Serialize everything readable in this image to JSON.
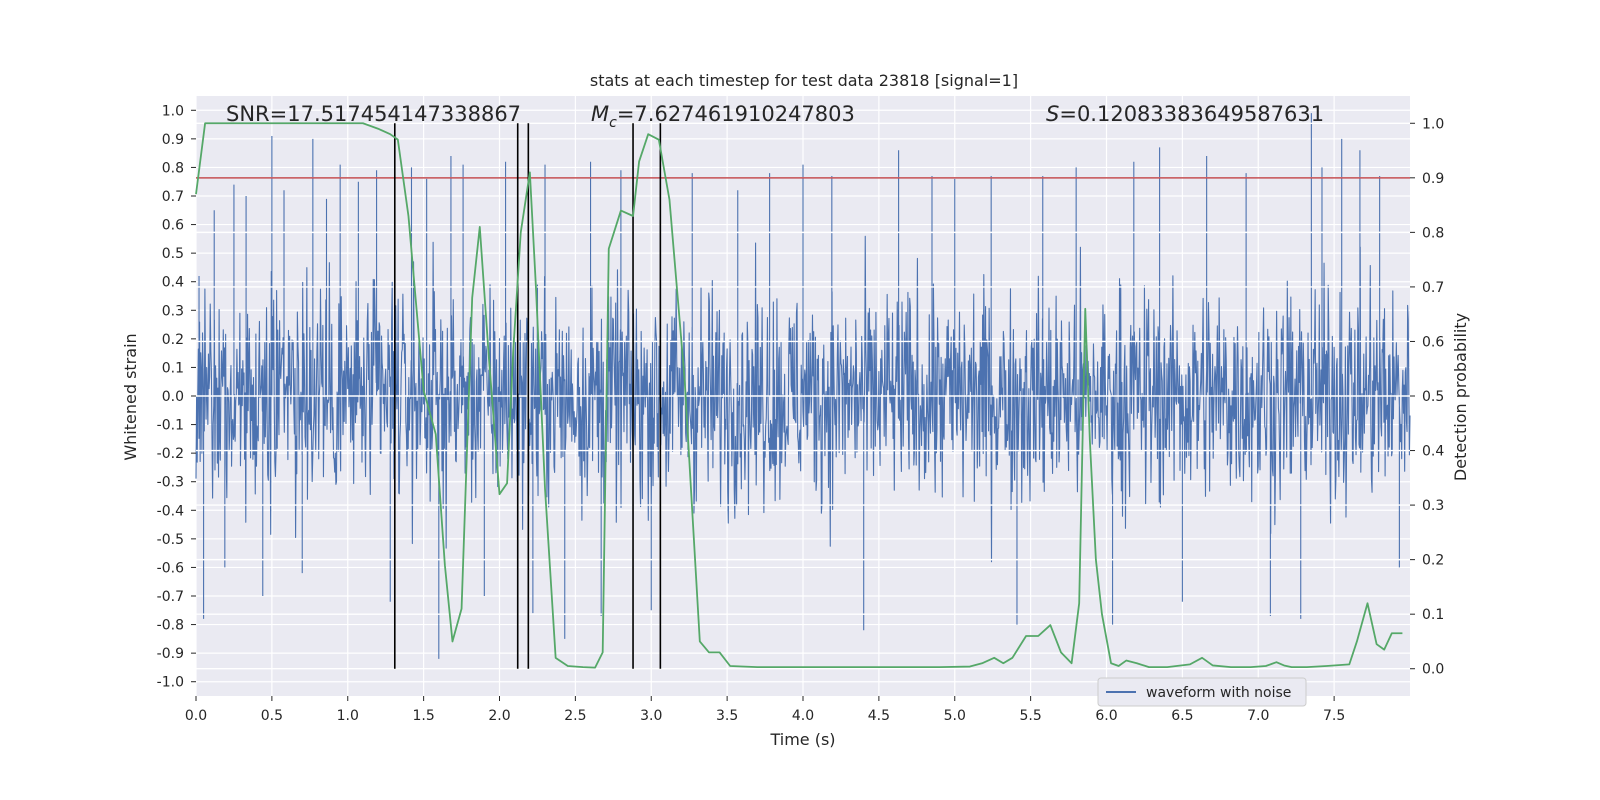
{
  "chart_data": {
    "type": "line",
    "title": "stats at each timestep for test data 23818 [signal=1]",
    "xlabel": "Time (s)",
    "ylabel": "Whitened strain",
    "y2label": "Detection probability",
    "xlim": [
      0.0,
      8.0
    ],
    "ylim": [
      -1.05,
      1.05
    ],
    "y2lim": [
      -0.05,
      1.05
    ],
    "x_ticks": [
      "0.0",
      "0.5",
      "1.0",
      "1.5",
      "2.0",
      "2.5",
      "3.0",
      "3.5",
      "4.0",
      "4.5",
      "5.0",
      "5.5",
      "6.0",
      "6.5",
      "7.0",
      "7.5"
    ],
    "y_ticks": [
      "-1.0",
      "-0.9",
      "-0.8",
      "-0.7",
      "-0.6",
      "-0.5",
      "-0.4",
      "-0.3",
      "-0.2",
      "-0.1",
      "0.0",
      "0.1",
      "0.2",
      "0.3",
      "0.4",
      "0.5",
      "0.6",
      "0.7",
      "0.8",
      "0.9",
      "1.0"
    ],
    "y2_ticks": [
      "0.0",
      "0.1",
      "0.2",
      "0.3",
      "0.4",
      "0.5",
      "0.6",
      "0.7",
      "0.8",
      "0.9",
      "1.0"
    ],
    "grid": true,
    "legend": {
      "placement": "lower-right",
      "entries": [
        "waveform with noise"
      ]
    },
    "annotations": {
      "snr": "SNR=17.517454147338867",
      "mc_symbol": "M",
      "mc_sub": "c",
      "mc_value": "=7.627461910247803",
      "s_symbol": "S",
      "s_value": "=0.12083383649587631"
    },
    "threshold": {
      "axis": "right",
      "value": 0.9,
      "color": "#c44e52"
    },
    "vertical_lines": {
      "x": [
        1.31,
        2.12,
        2.19,
        2.88,
        3.06
      ],
      "y2_range": [
        0.0,
        1.0
      ],
      "color": "#000000"
    },
    "noise_waveform": {
      "name": "waveform with noise",
      "color": "#4c72b0",
      "typical_range": [
        -0.55,
        0.55
      ],
      "peaks": [
        {
          "x": 0.02,
          "y": 0.42
        },
        {
          "x": 0.05,
          "y": -0.78
        },
        {
          "x": 0.12,
          "y": 0.65
        },
        {
          "x": 0.19,
          "y": -0.6
        },
        {
          "x": 0.25,
          "y": 0.74
        },
        {
          "x": 0.33,
          "y": 0.7
        },
        {
          "x": 0.44,
          "y": -0.7
        },
        {
          "x": 0.5,
          "y": 0.91
        },
        {
          "x": 0.58,
          "y": 0.72
        },
        {
          "x": 0.7,
          "y": -0.62
        },
        {
          "x": 0.77,
          "y": 0.9
        },
        {
          "x": 0.86,
          "y": 0.69
        },
        {
          "x": 0.95,
          "y": 0.81
        },
        {
          "x": 1.07,
          "y": 0.75
        },
        {
          "x": 1.19,
          "y": 0.79
        },
        {
          "x": 1.28,
          "y": -0.72
        },
        {
          "x": 1.42,
          "y": 0.8
        },
        {
          "x": 1.52,
          "y": 0.76
        },
        {
          "x": 1.6,
          "y": -0.92
        },
        {
          "x": 1.68,
          "y": 0.84
        },
        {
          "x": 1.76,
          "y": 0.81
        },
        {
          "x": 1.9,
          "y": -0.7
        },
        {
          "x": 2.04,
          "y": 0.82
        },
        {
          "x": 2.22,
          "y": -0.76
        },
        {
          "x": 2.3,
          "y": 0.81
        },
        {
          "x": 2.43,
          "y": -0.85
        },
        {
          "x": 2.6,
          "y": 0.82
        },
        {
          "x": 2.67,
          "y": -0.77
        },
        {
          "x": 2.8,
          "y": 0.79
        },
        {
          "x": 3.0,
          "y": -0.75
        },
        {
          "x": 3.27,
          "y": 0.78
        },
        {
          "x": 3.57,
          "y": 0.72
        },
        {
          "x": 3.78,
          "y": 0.78
        },
        {
          "x": 4.0,
          "y": 0.81
        },
        {
          "x": 4.19,
          "y": 0.77
        },
        {
          "x": 4.4,
          "y": -0.82
        },
        {
          "x": 4.63,
          "y": 0.86
        },
        {
          "x": 4.85,
          "y": 0.77
        },
        {
          "x": 5.0,
          "y": 0.76
        },
        {
          "x": 5.24,
          "y": 0.77
        },
        {
          "x": 5.41,
          "y": -0.8
        },
        {
          "x": 5.58,
          "y": 0.77
        },
        {
          "x": 5.8,
          "y": 0.8
        },
        {
          "x": 6.04,
          "y": -0.8
        },
        {
          "x": 6.18,
          "y": 0.82
        },
        {
          "x": 6.35,
          "y": 0.87
        },
        {
          "x": 6.5,
          "y": -0.72
        },
        {
          "x": 6.66,
          "y": 0.84
        },
        {
          "x": 6.92,
          "y": 0.78
        },
        {
          "x": 7.08,
          "y": -0.77
        },
        {
          "x": 7.28,
          "y": -0.78
        },
        {
          "x": 7.35,
          "y": 0.99
        },
        {
          "x": 7.42,
          "y": 0.8
        },
        {
          "x": 7.55,
          "y": 0.9
        },
        {
          "x": 7.67,
          "y": 0.86
        },
        {
          "x": 7.8,
          "y": 0.77
        },
        {
          "x": 7.93,
          "y": -0.6
        }
      ]
    },
    "detection_probability": {
      "color": "#55a868",
      "axis": "right",
      "x": [
        0.0,
        0.06,
        0.3,
        0.6,
        0.9,
        1.1,
        1.2,
        1.28,
        1.33,
        1.4,
        1.5,
        1.58,
        1.64,
        1.69,
        1.75,
        1.82,
        1.87,
        1.93,
        2.0,
        2.05,
        2.09,
        2.14,
        2.2,
        2.24,
        2.3,
        2.37,
        2.45,
        2.55,
        2.63,
        2.68,
        2.72,
        2.8,
        2.88,
        2.92,
        2.98,
        3.05,
        3.12,
        3.22,
        3.32,
        3.38,
        3.45,
        3.52,
        3.7,
        4.0,
        4.3,
        4.6,
        4.9,
        5.1,
        5.18,
        5.26,
        5.32,
        5.38,
        5.47,
        5.55,
        5.63,
        5.7,
        5.77,
        5.82,
        5.86,
        5.89,
        5.93,
        5.97,
        6.03,
        6.08,
        6.13,
        6.2,
        6.28,
        6.4,
        6.55,
        6.63,
        6.7,
        6.82,
        6.95,
        7.05,
        7.12,
        7.17,
        7.22,
        7.32,
        7.45,
        7.6,
        7.65,
        7.72,
        7.78,
        7.83,
        7.88,
        7.95
      ],
      "y": [
        0.87,
        1.0,
        1.0,
        1.0,
        1.0,
        1.0,
        0.99,
        0.98,
        0.97,
        0.83,
        0.51,
        0.43,
        0.19,
        0.05,
        0.11,
        0.68,
        0.81,
        0.57,
        0.32,
        0.34,
        0.58,
        0.8,
        0.91,
        0.7,
        0.33,
        0.02,
        0.005,
        0.003,
        0.002,
        0.03,
        0.77,
        0.84,
        0.83,
        0.93,
        0.98,
        0.97,
        0.86,
        0.53,
        0.05,
        0.03,
        0.03,
        0.005,
        0.003,
        0.003,
        0.003,
        0.003,
        0.003,
        0.004,
        0.01,
        0.02,
        0.01,
        0.02,
        0.06,
        0.06,
        0.08,
        0.03,
        0.01,
        0.12,
        0.66,
        0.42,
        0.2,
        0.1,
        0.01,
        0.005,
        0.015,
        0.01,
        0.003,
        0.003,
        0.008,
        0.02,
        0.006,
        0.003,
        0.003,
        0.005,
        0.012,
        0.006,
        0.003,
        0.003,
        0.005,
        0.008,
        0.05,
        0.12,
        0.045,
        0.035,
        0.065,
        0.065
      ]
    }
  }
}
